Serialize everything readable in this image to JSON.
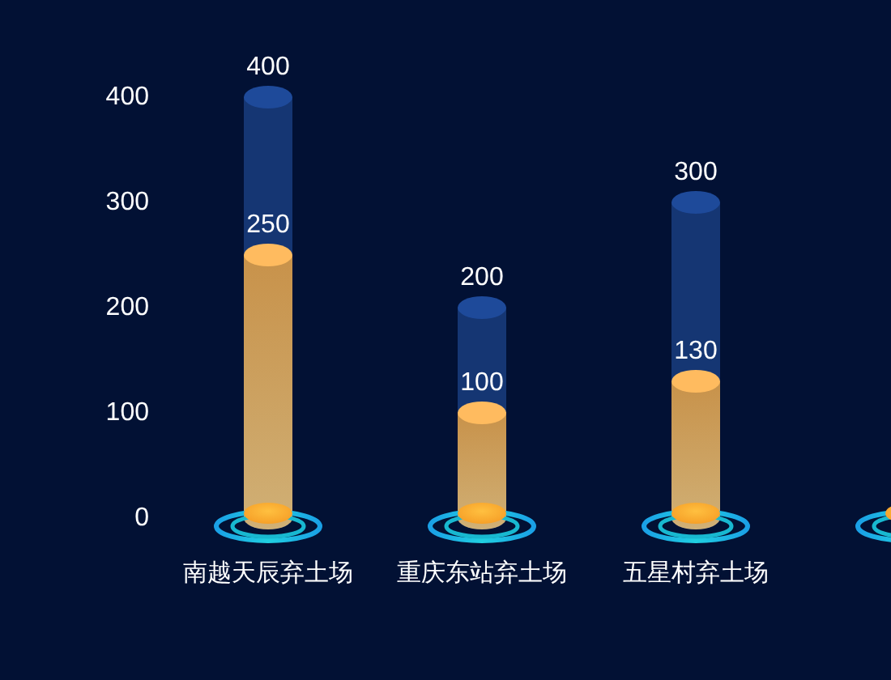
{
  "chart_data": {
    "type": "bar",
    "categories": [
      "南越天辰弃土场",
      "重庆东站弃土场",
      "五星村弃土场",
      null
    ],
    "series": [
      {
        "color": "#173a78",
        "values": [
          400,
          200,
          300,
          null
        ]
      },
      {
        "color": "#c8924a",
        "values": [
          250,
          100,
          130,
          null
        ]
      }
    ],
    "ylim": [
      0,
      400
    ],
    "yticks": [
      0,
      100,
      200,
      300,
      400
    ],
    "data_labels": true
  }
}
